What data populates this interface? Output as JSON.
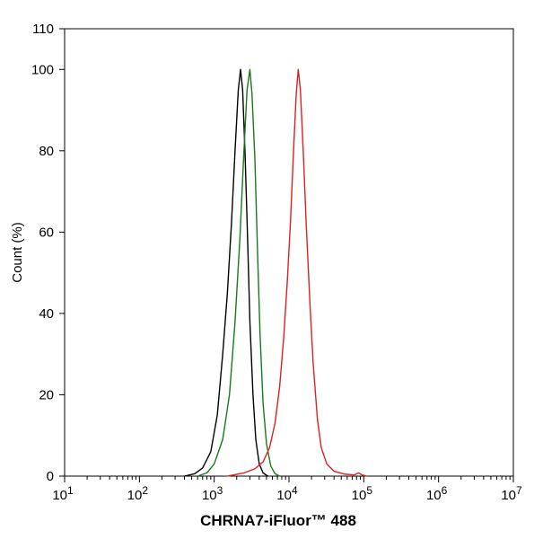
{
  "chart_data": {
    "type": "line",
    "title": "",
    "xlabel": "CHRNA7-iFluor™ 488",
    "ylabel": "Count  (%)",
    "x_scale": "log10",
    "xlim": [
      10,
      10000000
    ],
    "ylim": [
      0,
      110
    ],
    "x_ticks": [
      {
        "value": 10,
        "base": "10",
        "exp": "1"
      },
      {
        "value": 100,
        "base": "10",
        "exp": "2"
      },
      {
        "value": 1000,
        "base": "10",
        "exp": "3"
      },
      {
        "value": 10000,
        "base": "10",
        "exp": "4"
      },
      {
        "value": 100000,
        "base": "10",
        "exp": "5"
      },
      {
        "value": 1000000,
        "base": "10",
        "exp": "6"
      },
      {
        "value": 10000000,
        "base": "10",
        "exp": "7"
      }
    ],
    "y_ticks": [
      {
        "value": 0,
        "label": "0"
      },
      {
        "value": 20,
        "label": "20"
      },
      {
        "value": 40,
        "label": "40"
      },
      {
        "value": 60,
        "label": "60"
      },
      {
        "value": 80,
        "label": "80"
      },
      {
        "value": 100,
        "label": "100"
      },
      {
        "value": 110,
        "label": "110"
      }
    ],
    "grid": false,
    "legend": "none",
    "series": [
      {
        "color": "#000000",
        "points": [
          [
            400,
            0
          ],
          [
            550,
            0.6
          ],
          [
            700,
            2
          ],
          [
            900,
            6
          ],
          [
            1100,
            15
          ],
          [
            1300,
            30
          ],
          [
            1500,
            45
          ],
          [
            1700,
            62
          ],
          [
            1900,
            80
          ],
          [
            2100,
            95
          ],
          [
            2250,
            100
          ],
          [
            2400,
            95
          ],
          [
            2600,
            78
          ],
          [
            2800,
            58
          ],
          [
            3000,
            38
          ],
          [
            3300,
            20
          ],
          [
            3600,
            9
          ],
          [
            4000,
            3
          ],
          [
            4500,
            0.8
          ],
          [
            5200,
            0
          ]
        ]
      },
      {
        "color": "#1a7a1a",
        "points": [
          [
            600,
            0
          ],
          [
            800,
            0.8
          ],
          [
            1000,
            3
          ],
          [
            1300,
            9
          ],
          [
            1600,
            20
          ],
          [
            1900,
            38
          ],
          [
            2200,
            58
          ],
          [
            2500,
            80
          ],
          [
            2750,
            95
          ],
          [
            3000,
            100
          ],
          [
            3200,
            94
          ],
          [
            3500,
            78
          ],
          [
            3800,
            55
          ],
          [
            4100,
            35
          ],
          [
            4500,
            18
          ],
          [
            5000,
            8
          ],
          [
            5700,
            2.5
          ],
          [
            6500,
            0.6
          ],
          [
            7500,
            0
          ]
        ]
      },
      {
        "color": "#e02020",
        "points": [
          [
            1500,
            0
          ],
          [
            2500,
            0.8
          ],
          [
            3500,
            1.8
          ],
          [
            4500,
            3.5
          ],
          [
            5500,
            7
          ],
          [
            6500,
            13
          ],
          [
            7500,
            22
          ],
          [
            8500,
            34
          ],
          [
            9500,
            48
          ],
          [
            10500,
            63
          ],
          [
            11500,
            80
          ],
          [
            12500,
            94
          ],
          [
            13300,
            100
          ],
          [
            14200,
            95
          ],
          [
            15500,
            80
          ],
          [
            17000,
            62
          ],
          [
            19000,
            43
          ],
          [
            21000,
            28
          ],
          [
            24000,
            14
          ],
          [
            27000,
            7
          ],
          [
            32000,
            3
          ],
          [
            40000,
            1.2
          ],
          [
            55000,
            0.5
          ],
          [
            75000,
            0.3
          ],
          [
            85000,
            0.8
          ],
          [
            95000,
            0.3
          ],
          [
            110000,
            0
          ]
        ]
      }
    ]
  }
}
